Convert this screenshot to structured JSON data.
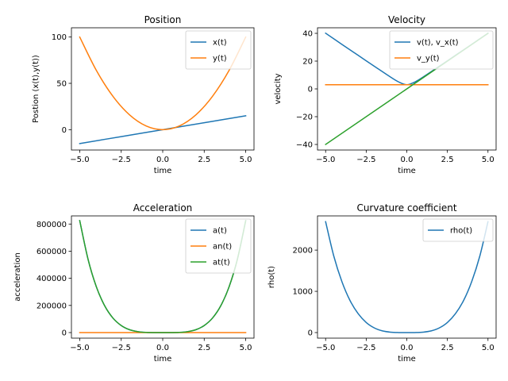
{
  "chart_data": [
    {
      "type": "line",
      "title": "Position",
      "xlabel": "time",
      "ylabel": "Postion (x(t),y(t))",
      "xlim": [
        -5.5,
        5.5
      ],
      "ylim": [
        -22,
        110
      ],
      "xticks": [
        -5.0,
        -2.5,
        0.0,
        2.5,
        5.0
      ],
      "xtick_labels": [
        "−5.0",
        "−2.5",
        "0.0",
        "2.5",
        "5.0"
      ],
      "yticks": [
        0,
        50,
        100
      ],
      "ytick_labels": [
        "0",
        "50",
        "100"
      ],
      "legend_position": "top-right",
      "series": [
        {
          "name": "x(t)",
          "color": "#1f77b4",
          "x": [
            -5,
            -2.5,
            0,
            2.5,
            5
          ],
          "y": [
            -15,
            -7.5,
            0,
            7.5,
            15
          ]
        },
        {
          "name": "y(t)",
          "color": "#ff7f0e",
          "x": [
            -5,
            -4,
            -3,
            -2,
            -1,
            0,
            1,
            2,
            3,
            4,
            5
          ],
          "y": [
            100,
            64,
            36,
            16,
            4,
            0,
            4,
            16,
            36,
            64,
            100
          ]
        }
      ]
    },
    {
      "type": "line",
      "title": "Velocity",
      "xlabel": "time",
      "ylabel": "velocity",
      "xlim": [
        -5.5,
        5.5
      ],
      "ylim": [
        -44,
        44
      ],
      "xticks": [
        -5.0,
        -2.5,
        0.0,
        2.5,
        5.0
      ],
      "xtick_labels": [
        "−5.0",
        "−2.5",
        "0.0",
        "2.5",
        "5.0"
      ],
      "yticks": [
        -40,
        -20,
        0,
        20,
        40
      ],
      "ytick_labels": [
        "−40",
        "−20",
        "0",
        "20",
        "40"
      ],
      "legend_position": "top-right",
      "series": [
        {
          "name": "v(t), v_x(t)",
          "color": "#1f77b4",
          "x": [
            -5,
            -4,
            -3,
            -2,
            -1,
            -0.5,
            0,
            0.5,
            1,
            2,
            3,
            4,
            5
          ],
          "y": [
            40.1,
            32.1,
            24.2,
            16.3,
            8.5,
            5,
            3,
            5,
            8.5,
            16.3,
            24.2,
            32.1,
            40.1
          ]
        },
        {
          "name": "v_y(t)",
          "color": "#ff7f0e",
          "x": [
            -5,
            5
          ],
          "y": [
            3,
            3
          ]
        },
        {
          "name": "",
          "color": "#2ca02c",
          "x": [
            -5,
            5
          ],
          "y": [
            -40,
            40
          ]
        }
      ]
    },
    {
      "type": "line",
      "title": "Acceleration",
      "xlabel": "time",
      "ylabel": "acceleration",
      "xlim": [
        -5.5,
        5.5
      ],
      "ylim": [
        -41000,
        860000
      ],
      "xticks": [
        -5.0,
        -2.5,
        0.0,
        2.5,
        5.0
      ],
      "xtick_labels": [
        "−5.0",
        "−2.5",
        "0.0",
        "2.5",
        "5.0"
      ],
      "yticks": [
        0,
        200000,
        400000,
        600000,
        800000
      ],
      "ytick_labels": [
        "0",
        "200000",
        "400000",
        "600000",
        "800000"
      ],
      "legend_position": "top-right",
      "series": [
        {
          "name": "a(t)",
          "color": "#1f77b4",
          "x": [
            -5,
            -4.5,
            -4,
            -3.5,
            -3,
            -2.5,
            -2,
            -1.5,
            -1,
            -0.5,
            0,
            0.5,
            1,
            1.5,
            2,
            2.5,
            3,
            3.5,
            4,
            4.5,
            5
          ],
          "y": [
            825000,
            541000,
            338000,
            198000,
            107000,
            52000,
            21100,
            6700,
            1320,
            83,
            0,
            83,
            1320,
            6700,
            21100,
            52000,
            107000,
            198000,
            338000,
            541000,
            825000
          ]
        },
        {
          "name": "an(t)",
          "color": "#ff7f0e",
          "x": [
            -5,
            5
          ],
          "y": [
            0,
            0
          ]
        },
        {
          "name": "at(t)",
          "color": "#2ca02c",
          "x": [
            -5,
            -4.5,
            -4,
            -3.5,
            -3,
            -2.5,
            -2,
            -1.5,
            -1,
            -0.5,
            0,
            0.5,
            1,
            1.5,
            2,
            2.5,
            3,
            3.5,
            4,
            4.5,
            5
          ],
          "y": [
            825000,
            541000,
            338000,
            198000,
            107000,
            52000,
            21100,
            6700,
            1320,
            83,
            0,
            83,
            1320,
            6700,
            21100,
            52000,
            107000,
            198000,
            338000,
            541000,
            825000
          ]
        }
      ]
    },
    {
      "type": "line",
      "title": "Curvature coefficient",
      "xlabel": "time",
      "ylabel": "rho(t)",
      "xlim": [
        -5.5,
        5.5
      ],
      "ylim": [
        -135,
        2830
      ],
      "xticks": [
        -5.0,
        -2.5,
        0.0,
        2.5,
        5.0
      ],
      "xtick_labels": [
        "−5.0",
        "−2.5",
        "0.0",
        "2.5",
        "5.0"
      ],
      "yticks": [
        0,
        1000,
        2000
      ],
      "ytick_labels": [
        "0",
        "1000",
        "2000"
      ],
      "legend_position": "top-right",
      "series": [
        {
          "name": "rho(t)",
          "color": "#1f77b4",
          "x": [
            -5,
            -4.5,
            -4,
            -3.5,
            -3,
            -2.5,
            -2,
            -1.5,
            -1,
            -0.5,
            0,
            0.5,
            1,
            1.5,
            2,
            2.5,
            3,
            3.5,
            4,
            4.5,
            5
          ],
          "y": [
            2690,
            1860,
            1240,
            780,
            460,
            245,
            113,
            40,
            10,
            1,
            0,
            1,
            10,
            40,
            113,
            245,
            460,
            780,
            1240,
            1860,
            2690
          ]
        }
      ]
    }
  ]
}
